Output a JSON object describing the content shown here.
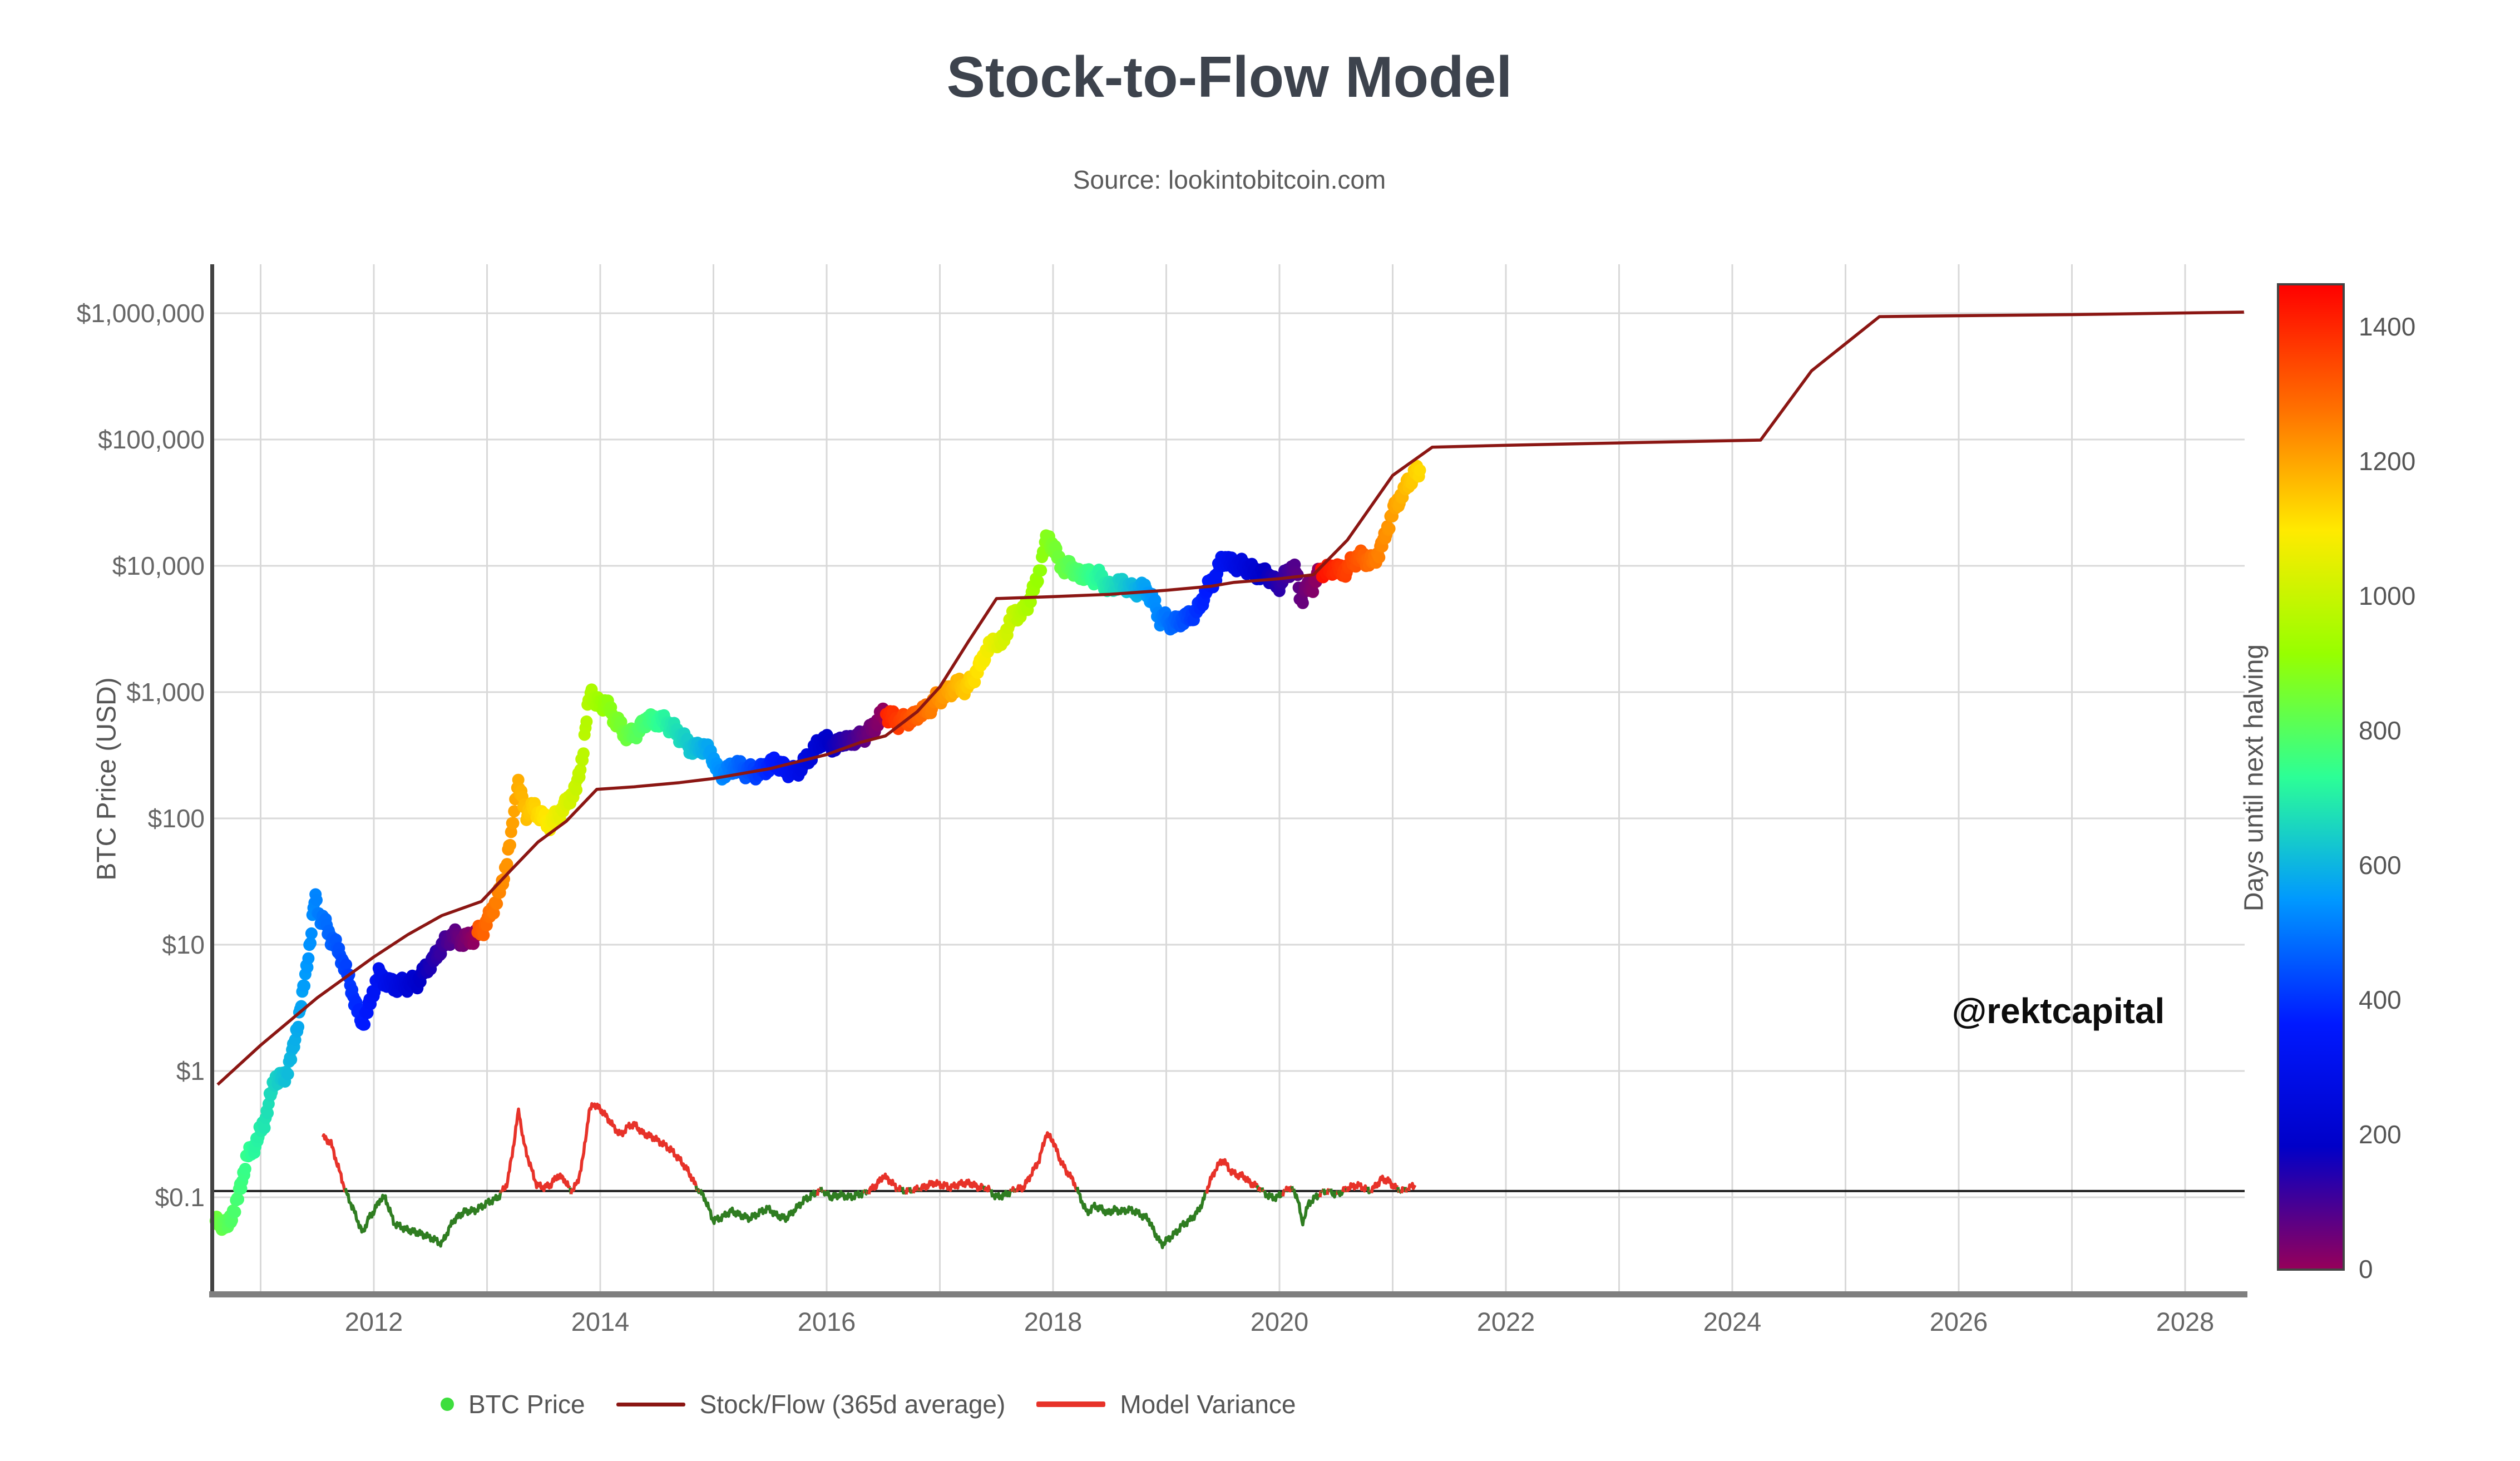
{
  "header": {
    "title": "Stock-to-Flow Model",
    "subtitle": "Source: lookintobitcoin.com"
  },
  "watermark": "@rektcapital",
  "axes": {
    "y_title": "BTC Price (USD)",
    "y_ticks": [
      {
        "value": 1000000,
        "label": "$1,000,000"
      },
      {
        "value": 100000,
        "label": "$100,000"
      },
      {
        "value": 10000,
        "label": "$10,000"
      },
      {
        "value": 1000,
        "label": "$1,000"
      },
      {
        "value": 100,
        "label": "$100"
      },
      {
        "value": 10,
        "label": "$10"
      },
      {
        "value": 1,
        "label": "$1"
      },
      {
        "value": 0.1,
        "label": "$0.1"
      }
    ],
    "x_ticks": [
      2012,
      2014,
      2016,
      2018,
      2020,
      2022,
      2024,
      2026,
      2028
    ],
    "x_gridline_years_start": 2011,
    "x_gridline_years_end": 2028,
    "x_range": [
      2010.59,
      2028.52
    ],
    "y_range": [
      0.018,
      2400000
    ],
    "grid": true
  },
  "colorbar": {
    "title": "Days until next halving",
    "ticks": [
      0,
      200,
      400,
      600,
      800,
      1000,
      1200,
      1400
    ],
    "max_days": 1463,
    "scale_max_days": 1458,
    "stops": [
      "rgb(150,0,90)",
      "rgb(0,0,200)",
      "rgb(0,25,255)",
      "rgb(0,152,255)",
      "rgb(44,255,150)",
      "rgb(151,255,0)",
      "rgb(255,234,0)",
      "rgb(255,111,0)",
      "rgb(255,0,0)"
    ]
  },
  "legend": [
    {
      "label": "BTC Price",
      "type": "dot",
      "color": "#3ede3e"
    },
    {
      "label": "Stock/Flow (365d average)",
      "type": "line",
      "color": "#8b1613"
    },
    {
      "label": "Model Variance",
      "type": "line-thick",
      "color": "#e73229"
    }
  ],
  "colors": {
    "grid": "#d9d9d9",
    "axis_left": "#424242",
    "axis_bottom": "#7f7f7f",
    "tick_label": "#666666",
    "baseline": "#1a1a1a",
    "s2f_line": "#8b1613",
    "variance_above": "#e73229",
    "variance_below": "#2f7d21"
  },
  "chart_data": {
    "type": "scatter",
    "title": "Stock-to-Flow Model",
    "xlabel": "",
    "ylabel": "BTC Price (USD)",
    "y_log": true,
    "halvings": [
      2012.908,
      2016.519,
      2020.36,
      2024.301
    ],
    "variance_baseline": 0.112,
    "btc_price": [
      [
        2010.6,
        0.062
      ],
      [
        2010.66,
        0.063
      ],
      [
        2010.71,
        0.06
      ],
      [
        2010.79,
        0.09
      ],
      [
        2010.88,
        0.21
      ],
      [
        2010.96,
        0.27
      ],
      [
        2011.04,
        0.42
      ],
      [
        2011.13,
        0.9
      ],
      [
        2011.21,
        0.86
      ],
      [
        2011.29,
        1.5
      ],
      [
        2011.38,
        4.5
      ],
      [
        2011.44,
        11
      ],
      [
        2011.48,
        24
      ],
      [
        2011.52,
        17
      ],
      [
        2011.58,
        14
      ],
      [
        2011.63,
        11
      ],
      [
        2011.71,
        8.2
      ],
      [
        2011.79,
        5.0
      ],
      [
        2011.85,
        3.1
      ],
      [
        2011.9,
        2.4
      ],
      [
        2011.96,
        3.3
      ],
      [
        2012.04,
        5.9
      ],
      [
        2012.13,
        4.9
      ],
      [
        2012.21,
        4.8
      ],
      [
        2012.29,
        4.9
      ],
      [
        2012.38,
        5.1
      ],
      [
        2012.46,
        6.4
      ],
      [
        2012.54,
        7.9
      ],
      [
        2012.63,
        10.6
      ],
      [
        2012.71,
        11.9
      ],
      [
        2012.79,
        10.8
      ],
      [
        2012.88,
        11.6
      ],
      [
        2012.96,
        13.2
      ],
      [
        2013.04,
        18
      ],
      [
        2013.13,
        29
      ],
      [
        2013.21,
        68
      ],
      [
        2013.27,
        200
      ],
      [
        2013.3,
        150
      ],
      [
        2013.35,
        110
      ],
      [
        2013.42,
        122
      ],
      [
        2013.5,
        98
      ],
      [
        2013.56,
        92
      ],
      [
        2013.63,
        108
      ],
      [
        2013.71,
        135
      ],
      [
        2013.79,
        175
      ],
      [
        2013.85,
        340
      ],
      [
        2013.89,
        750
      ],
      [
        2013.92,
        1050
      ],
      [
        2013.96,
        800
      ],
      [
        2014.04,
        830
      ],
      [
        2014.13,
        620
      ],
      [
        2014.21,
        480
      ],
      [
        2014.29,
        455
      ],
      [
        2014.35,
        520
      ],
      [
        2014.42,
        610
      ],
      [
        2014.5,
        595
      ],
      [
        2014.58,
        585
      ],
      [
        2014.65,
        505
      ],
      [
        2014.71,
        455
      ],
      [
        2014.79,
        370
      ],
      [
        2014.85,
        355
      ],
      [
        2014.92,
        370
      ],
      [
        2014.98,
        325
      ],
      [
        2015.04,
        235
      ],
      [
        2015.1,
        225
      ],
      [
        2015.15,
        250
      ],
      [
        2015.21,
        260
      ],
      [
        2015.29,
        238
      ],
      [
        2015.38,
        234
      ],
      [
        2015.46,
        248
      ],
      [
        2015.52,
        278
      ],
      [
        2015.6,
        262
      ],
      [
        2015.65,
        240
      ],
      [
        2015.71,
        232
      ],
      [
        2015.79,
        265
      ],
      [
        2015.85,
        315
      ],
      [
        2015.92,
        375
      ],
      [
        2015.96,
        430
      ],
      [
        2016.02,
        395
      ],
      [
        2016.08,
        375
      ],
      [
        2016.15,
        420
      ],
      [
        2016.21,
        412
      ],
      [
        2016.29,
        438
      ],
      [
        2016.38,
        485
      ],
      [
        2016.44,
        580
      ],
      [
        2016.5,
        670
      ],
      [
        2016.56,
        650
      ],
      [
        2016.63,
        585
      ],
      [
        2016.71,
        605
      ],
      [
        2016.79,
        650
      ],
      [
        2016.85,
        710
      ],
      [
        2016.92,
        765
      ],
      [
        2016.98,
        925
      ],
      [
        2017.04,
        950
      ],
      [
        2017.1,
        1060
      ],
      [
        2017.17,
        1150
      ],
      [
        2017.23,
        1080
      ],
      [
        2017.29,
        1270
      ],
      [
        2017.35,
        1600
      ],
      [
        2017.42,
        2200
      ],
      [
        2017.48,
        2550
      ],
      [
        2017.54,
        2400
      ],
      [
        2017.6,
        3300
      ],
      [
        2017.67,
        4300
      ],
      [
        2017.73,
        4200
      ],
      [
        2017.79,
        5400
      ],
      [
        2017.85,
        7200
      ],
      [
        2017.9,
        11000
      ],
      [
        2017.95,
        17500
      ],
      [
        2017.99,
        14500
      ],
      [
        2018.04,
        12000
      ],
      [
        2018.1,
        9200
      ],
      [
        2018.15,
        10500
      ],
      [
        2018.21,
        8300
      ],
      [
        2018.27,
        8900
      ],
      [
        2018.33,
        8100
      ],
      [
        2018.4,
        8400
      ],
      [
        2018.46,
        7200
      ],
      [
        2018.52,
        6600
      ],
      [
        2018.58,
        7400
      ],
      [
        2018.65,
        6900
      ],
      [
        2018.71,
        6400
      ],
      [
        2018.77,
        6600
      ],
      [
        2018.83,
        6450
      ],
      [
        2018.88,
        5300
      ],
      [
        2018.94,
        3900
      ],
      [
        2019.0,
        3750
      ],
      [
        2019.06,
        3500
      ],
      [
        2019.13,
        3700
      ],
      [
        2019.19,
        3980
      ],
      [
        2019.25,
        4100
      ],
      [
        2019.31,
        5200
      ],
      [
        2019.38,
        7100
      ],
      [
        2019.44,
        8300
      ],
      [
        2019.48,
        10500
      ],
      [
        2019.52,
        11800
      ],
      [
        2019.56,
        10300
      ],
      [
        2019.63,
        10400
      ],
      [
        2019.69,
        9900
      ],
      [
        2019.75,
        9500
      ],
      [
        2019.81,
        8400
      ],
      [
        2019.88,
        8900
      ],
      [
        2019.94,
        7400
      ],
      [
        2020.0,
        7250
      ],
      [
        2020.06,
        8400
      ],
      [
        2020.1,
        9800
      ],
      [
        2020.15,
        8800
      ],
      [
        2020.19,
        5300
      ],
      [
        2020.23,
        6500
      ],
      [
        2020.29,
        6900
      ],
      [
        2020.35,
        8800
      ],
      [
        2020.42,
        9300
      ],
      [
        2020.48,
        9500
      ],
      [
        2020.54,
        9200
      ],
      [
        2020.6,
        9300
      ],
      [
        2020.65,
        11200
      ],
      [
        2020.71,
        11700
      ],
      [
        2020.77,
        11400
      ],
      [
        2020.83,
        10600
      ],
      [
        2020.88,
        13100
      ],
      [
        2020.92,
        15600
      ],
      [
        2020.94,
        18000
      ],
      [
        2020.98,
        23500
      ],
      [
        2021.02,
        29500
      ],
      [
        2021.06,
        34000
      ],
      [
        2021.1,
        38000
      ],
      [
        2021.13,
        46500
      ],
      [
        2021.17,
        49000
      ],
      [
        2021.21,
        55500
      ],
      [
        2021.25,
        57500
      ]
    ],
    "stock_flow_line": [
      [
        2010.62,
        0.78
      ],
      [
        2011.0,
        1.6
      ],
      [
        2011.5,
        3.8
      ],
      [
        2012.0,
        8.0
      ],
      [
        2012.3,
        12
      ],
      [
        2012.6,
        17
      ],
      [
        2012.95,
        22
      ],
      [
        2013.2,
        38
      ],
      [
        2013.45,
        65
      ],
      [
        2013.7,
        95
      ],
      [
        2013.97,
        170
      ],
      [
        2014.3,
        178
      ],
      [
        2014.7,
        192
      ],
      [
        2015.0,
        207
      ],
      [
        2015.5,
        248
      ],
      [
        2016.0,
        320
      ],
      [
        2016.3,
        400
      ],
      [
        2016.52,
        450
      ],
      [
        2016.8,
        700
      ],
      [
        2017.0,
        1100
      ],
      [
        2017.25,
        2500
      ],
      [
        2017.5,
        5500
      ],
      [
        2018.0,
        5700
      ],
      [
        2018.5,
        5950
      ],
      [
        2019.0,
        6400
      ],
      [
        2019.4,
        6900
      ],
      [
        2019.6,
        7400
      ],
      [
        2020.0,
        7900
      ],
      [
        2020.3,
        8500
      ],
      [
        2020.6,
        16000
      ],
      [
        2021.0,
        52000
      ],
      [
        2021.35,
        87000
      ],
      [
        2022.0,
        90000
      ],
      [
        2023.0,
        94000
      ],
      [
        2024.25,
        99000
      ],
      [
        2024.7,
        350000
      ],
      [
        2025.3,
        940000
      ],
      [
        2026.0,
        955000
      ],
      [
        2027.0,
        975000
      ],
      [
        2028.52,
        1020000
      ]
    ],
    "model_variance": [
      [
        2011.55,
        0.3
      ],
      [
        2011.62,
        0.27
      ],
      [
        2011.68,
        0.18
      ],
      [
        2011.75,
        0.112
      ],
      [
        2011.82,
        0.08
      ],
      [
        2011.9,
        0.052
      ],
      [
        2011.96,
        0.07
      ],
      [
        2012.0,
        0.077
      ],
      [
        2012.05,
        0.095
      ],
      [
        2012.1,
        0.1
      ],
      [
        2012.18,
        0.062
      ],
      [
        2012.28,
        0.056
      ],
      [
        2012.4,
        0.052
      ],
      [
        2012.5,
        0.048
      ],
      [
        2012.6,
        0.043
      ],
      [
        2012.7,
        0.065
      ],
      [
        2012.8,
        0.077
      ],
      [
        2012.9,
        0.079
      ],
      [
        2013.0,
        0.09
      ],
      [
        2013.1,
        0.1
      ],
      [
        2013.18,
        0.13
      ],
      [
        2013.24,
        0.28
      ],
      [
        2013.28,
        0.5
      ],
      [
        2013.32,
        0.28
      ],
      [
        2013.38,
        0.18
      ],
      [
        2013.44,
        0.125
      ],
      [
        2013.5,
        0.12
      ],
      [
        2013.56,
        0.125
      ],
      [
        2013.62,
        0.148
      ],
      [
        2013.68,
        0.14
      ],
      [
        2013.74,
        0.112
      ],
      [
        2013.8,
        0.13
      ],
      [
        2013.85,
        0.21
      ],
      [
        2013.9,
        0.47
      ],
      [
        2013.94,
        0.55
      ],
      [
        2014.0,
        0.5
      ],
      [
        2014.06,
        0.43
      ],
      [
        2014.12,
        0.36
      ],
      [
        2014.18,
        0.31
      ],
      [
        2014.24,
        0.36
      ],
      [
        2014.3,
        0.38
      ],
      [
        2014.38,
        0.32
      ],
      [
        2014.46,
        0.3
      ],
      [
        2014.54,
        0.27
      ],
      [
        2014.62,
        0.24
      ],
      [
        2014.7,
        0.2
      ],
      [
        2014.78,
        0.16
      ],
      [
        2014.85,
        0.12
      ],
      [
        2014.92,
        0.1
      ],
      [
        2015.0,
        0.065
      ],
      [
        2015.08,
        0.07
      ],
      [
        2015.16,
        0.078
      ],
      [
        2015.24,
        0.072
      ],
      [
        2015.32,
        0.068
      ],
      [
        2015.4,
        0.075
      ],
      [
        2015.48,
        0.082
      ],
      [
        2015.56,
        0.072
      ],
      [
        2015.64,
        0.068
      ],
      [
        2015.72,
        0.08
      ],
      [
        2015.8,
        0.095
      ],
      [
        2015.88,
        0.105
      ],
      [
        2015.96,
        0.115
      ],
      [
        2016.04,
        0.1
      ],
      [
        2016.12,
        0.105
      ],
      [
        2016.2,
        0.1
      ],
      [
        2016.28,
        0.105
      ],
      [
        2016.36,
        0.11
      ],
      [
        2016.44,
        0.125
      ],
      [
        2016.5,
        0.148
      ],
      [
        2016.56,
        0.135
      ],
      [
        2016.62,
        0.118
      ],
      [
        2016.7,
        0.112
      ],
      [
        2016.78,
        0.115
      ],
      [
        2016.86,
        0.12
      ],
      [
        2016.94,
        0.13
      ],
      [
        2017.02,
        0.125
      ],
      [
        2017.1,
        0.12
      ],
      [
        2017.18,
        0.128
      ],
      [
        2017.26,
        0.13
      ],
      [
        2017.34,
        0.12
      ],
      [
        2017.42,
        0.118
      ],
      [
        2017.5,
        0.1
      ],
      [
        2017.58,
        0.105
      ],
      [
        2017.66,
        0.115
      ],
      [
        2017.74,
        0.12
      ],
      [
        2017.82,
        0.16
      ],
      [
        2017.88,
        0.2
      ],
      [
        2017.94,
        0.32
      ],
      [
        2018.0,
        0.28
      ],
      [
        2018.06,
        0.2
      ],
      [
        2018.12,
        0.16
      ],
      [
        2018.18,
        0.135
      ],
      [
        2018.24,
        0.1
      ],
      [
        2018.3,
        0.075
      ],
      [
        2018.36,
        0.085
      ],
      [
        2018.42,
        0.082
      ],
      [
        2018.48,
        0.075
      ],
      [
        2018.54,
        0.08
      ],
      [
        2018.6,
        0.077
      ],
      [
        2018.66,
        0.08
      ],
      [
        2018.72,
        0.078
      ],
      [
        2018.78,
        0.072
      ],
      [
        2018.84,
        0.068
      ],
      [
        2018.9,
        0.052
      ],
      [
        2018.96,
        0.042
      ],
      [
        2019.02,
        0.047
      ],
      [
        2019.08,
        0.052
      ],
      [
        2019.14,
        0.06
      ],
      [
        2019.2,
        0.065
      ],
      [
        2019.26,
        0.073
      ],
      [
        2019.32,
        0.09
      ],
      [
        2019.38,
        0.13
      ],
      [
        2019.44,
        0.17
      ],
      [
        2019.5,
        0.2
      ],
      [
        2019.56,
        0.165
      ],
      [
        2019.62,
        0.15
      ],
      [
        2019.68,
        0.148
      ],
      [
        2019.74,
        0.13
      ],
      [
        2019.8,
        0.122
      ],
      [
        2019.86,
        0.11
      ],
      [
        2019.92,
        0.1
      ],
      [
        2019.98,
        0.1
      ],
      [
        2020.04,
        0.11
      ],
      [
        2020.1,
        0.12
      ],
      [
        2020.16,
        0.1
      ],
      [
        2020.2,
        0.062
      ],
      [
        2020.26,
        0.09
      ],
      [
        2020.32,
        0.1
      ],
      [
        2020.38,
        0.11
      ],
      [
        2020.44,
        0.112
      ],
      [
        2020.5,
        0.105
      ],
      [
        2020.56,
        0.112
      ],
      [
        2020.62,
        0.12
      ],
      [
        2020.68,
        0.125
      ],
      [
        2020.74,
        0.12
      ],
      [
        2020.8,
        0.112
      ],
      [
        2020.86,
        0.125
      ],
      [
        2020.9,
        0.14
      ],
      [
        2020.96,
        0.135
      ],
      [
        2021.02,
        0.12
      ],
      [
        2021.08,
        0.112
      ],
      [
        2021.14,
        0.118
      ],
      [
        2021.2,
        0.125
      ]
    ]
  }
}
